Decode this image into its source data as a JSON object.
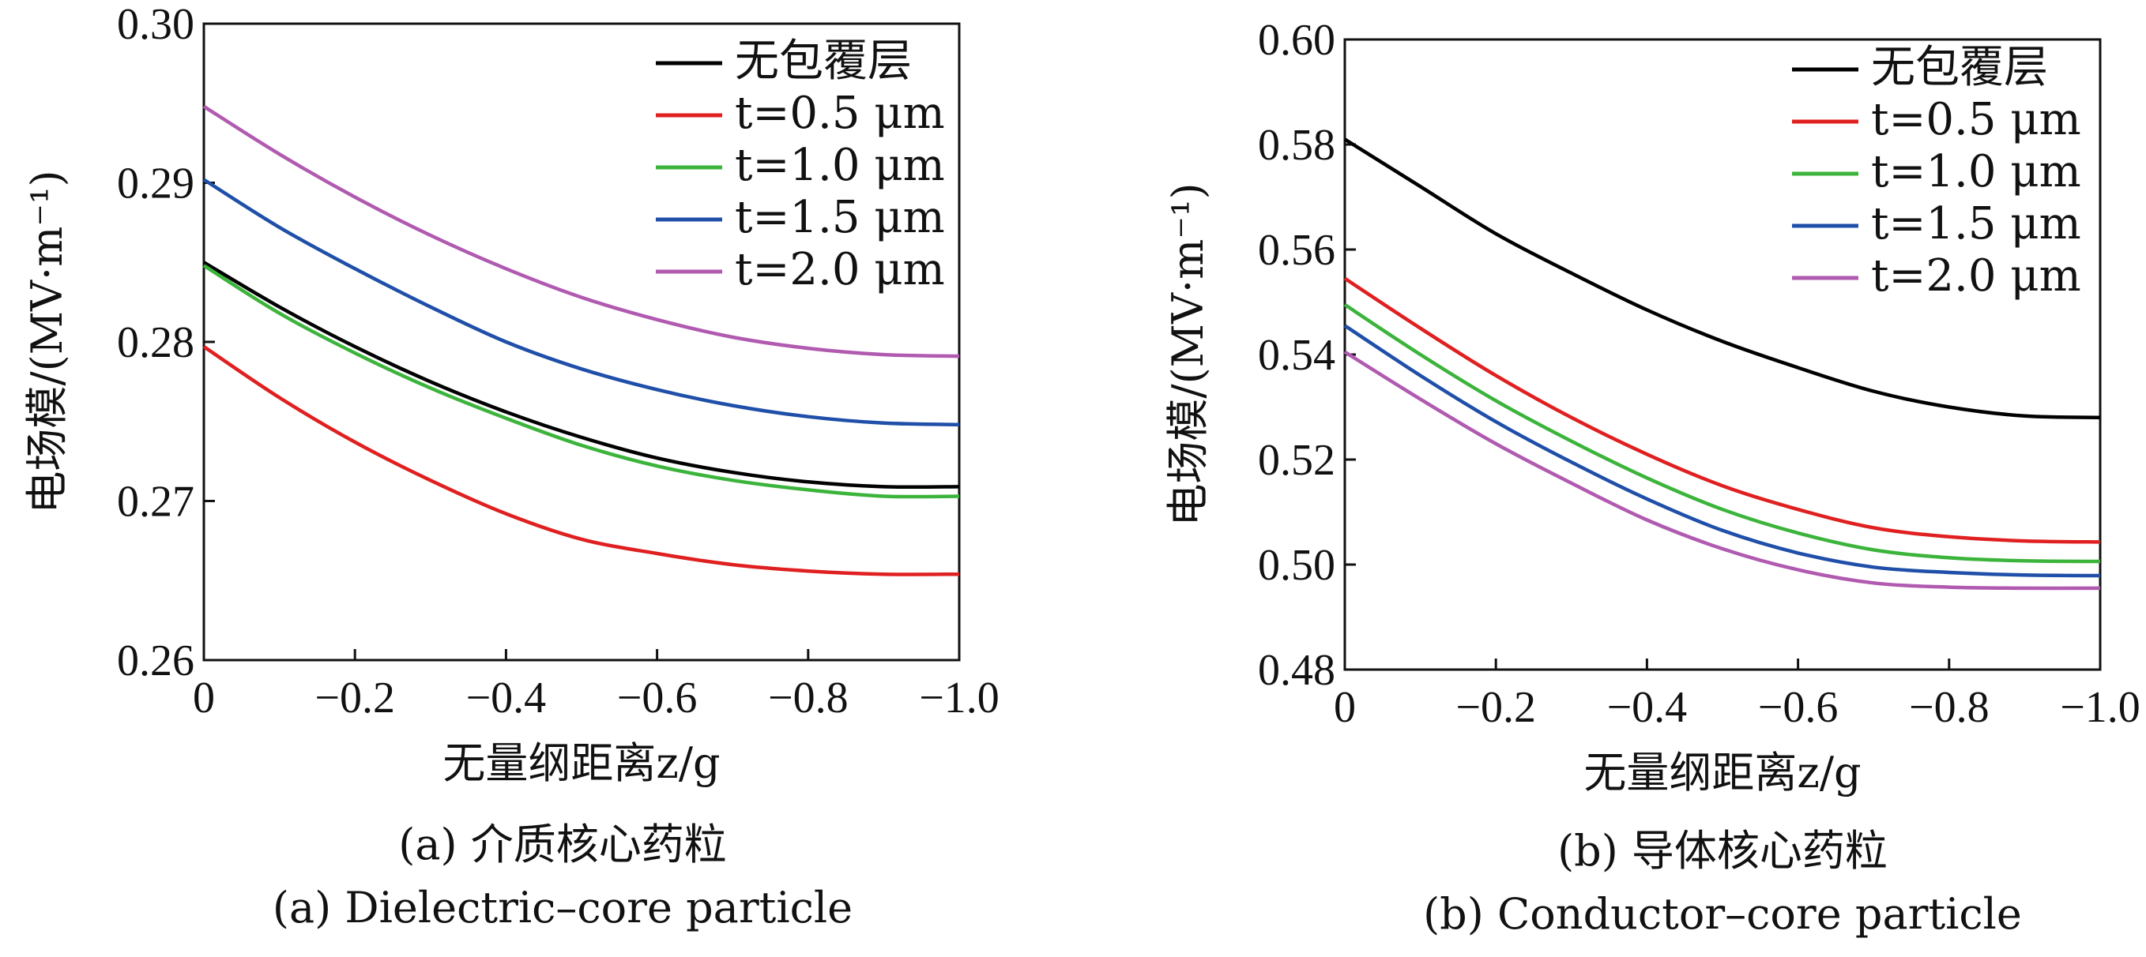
{
  "charts": [
    {
      "id": "a",
      "chart_data": {
        "type": "line",
        "x": [
          0,
          -0.1,
          -0.2,
          -0.3,
          -0.4,
          -0.5,
          -0.6,
          -0.7,
          -0.8,
          -0.9,
          -1.0
        ],
        "xlim": [
          0,
          -1.0
        ],
        "ylim": [
          0.26,
          0.3
        ],
        "xticks": [
          "0",
          "−0.2",
          "−0.4",
          "−0.6",
          "−0.8",
          "−1.0"
        ],
        "xtick_values": [
          0,
          -0.2,
          -0.4,
          -0.6,
          -0.8,
          -1.0
        ],
        "yticks": [
          "0.26",
          "0.27",
          "0.28",
          "0.29",
          "0.30"
        ],
        "ytick_values": [
          0.26,
          0.27,
          0.28,
          0.29,
          0.3
        ],
        "xlabel": "无量纲距离z/g",
        "ylabel": "电场模/(MV·m⁻¹)",
        "legend_position": "top-right",
        "series": [
          {
            "name": "无包覆层",
            "color": "#000000",
            "values": [
              0.285,
              0.2822,
              0.2797,
              0.2775,
              0.2756,
              0.274,
              0.2727,
              0.2718,
              0.2712,
              0.2709,
              0.2709
            ]
          },
          {
            "name": "t=0.5 μm",
            "color": "#e02020",
            "values": [
              0.2797,
              0.2765,
              0.2737,
              0.2713,
              0.2692,
              0.2676,
              0.2667,
              0.266,
              0.2656,
              0.2654,
              0.2654
            ]
          },
          {
            "name": "t=1.0 μm",
            "color": "#3cb43c",
            "values": [
              0.2848,
              0.2818,
              0.2793,
              0.2771,
              0.2752,
              0.2735,
              0.2722,
              0.2713,
              0.2707,
              0.2703,
              0.2703
            ]
          },
          {
            "name": "t=1.5 μm",
            "color": "#1f4fa8",
            "values": [
              0.2902,
              0.2872,
              0.2846,
              0.2822,
              0.28,
              0.2783,
              0.277,
              0.276,
              0.2753,
              0.2749,
              0.2748
            ]
          },
          {
            "name": "t=2.0 μm",
            "color": "#b05ab0",
            "values": [
              0.2948,
              0.2918,
              0.2891,
              0.2867,
              0.2846,
              0.2828,
              0.2814,
              0.2803,
              0.2796,
              0.2792,
              0.2791
            ]
          }
        ]
      },
      "caption_cn": "(a) 介质核心药粒",
      "caption_en": "(a) Dielectric–core particle"
    },
    {
      "id": "b",
      "chart_data": {
        "type": "line",
        "x": [
          0,
          -0.1,
          -0.2,
          -0.3,
          -0.4,
          -0.5,
          -0.6,
          -0.7,
          -0.8,
          -0.9,
          -1.0
        ],
        "xlim": [
          0,
          -1.0
        ],
        "ylim": [
          0.48,
          0.6
        ],
        "xticks": [
          "0",
          "−0.2",
          "−0.4",
          "−0.6",
          "−0.8",
          "−1.0"
        ],
        "xtick_values": [
          0,
          -0.2,
          -0.4,
          -0.6,
          -0.8,
          -1.0
        ],
        "yticks": [
          "0.48",
          "0.50",
          "0.52",
          "0.54",
          "0.56",
          "0.58",
          "0.60"
        ],
        "ytick_values": [
          0.48,
          0.5,
          0.52,
          0.54,
          0.56,
          0.58,
          0.6
        ],
        "xlabel": "无量纲距离z/g",
        "ylabel": "电场模/(MV·m⁻¹)",
        "legend_position": "top-right",
        "series": [
          {
            "name": "无包覆层",
            "color": "#000000",
            "values": [
              0.581,
              0.572,
              0.563,
              0.5555,
              0.5485,
              0.5425,
              0.5375,
              0.533,
              0.53,
              0.5283,
              0.528
            ]
          },
          {
            "name": "t=0.5 μm",
            "color": "#e02020",
            "values": [
              0.5545,
              0.545,
              0.536,
              0.528,
              0.521,
              0.515,
              0.5105,
              0.507,
              0.5053,
              0.5045,
              0.5043
            ]
          },
          {
            "name": "t=1.0 μm",
            "color": "#3cb43c",
            "values": [
              0.5495,
              0.54,
              0.5312,
              0.5235,
              0.5165,
              0.5105,
              0.506,
              0.5028,
              0.5013,
              0.5007,
              0.5006
            ]
          },
          {
            "name": "t=1.5 μm",
            "color": "#1f4fa8",
            "values": [
              0.5455,
              0.536,
              0.5272,
              0.5195,
              0.5125,
              0.5065,
              0.5022,
              0.4995,
              0.4985,
              0.498,
              0.4979
            ]
          },
          {
            "name": "t=2.0 μm",
            "color": "#b05ab0",
            "values": [
              0.5405,
              0.5315,
              0.523,
              0.5155,
              0.5085,
              0.503,
              0.499,
              0.4965,
              0.4957,
              0.4955,
              0.4955
            ]
          }
        ]
      },
      "caption_cn": "(b) 导体核心药粒",
      "caption_en": "(b) Conductor–core particle"
    }
  ]
}
